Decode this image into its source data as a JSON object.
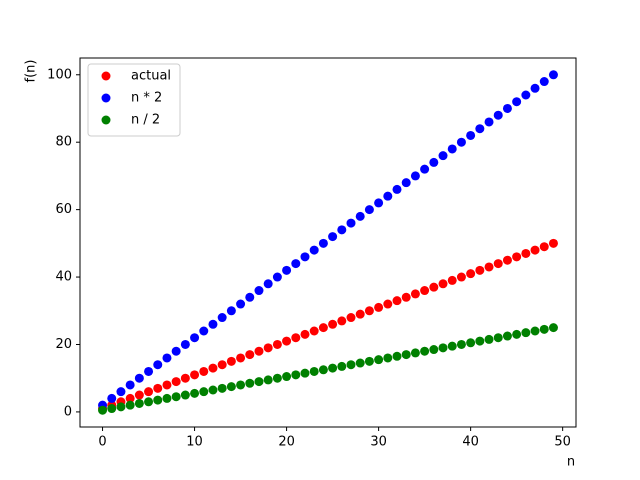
{
  "chart_data": {
    "type": "scatter",
    "xlabel": "n",
    "ylabel": "f(n)",
    "x": [
      0,
      1,
      2,
      3,
      4,
      5,
      6,
      7,
      8,
      9,
      10,
      11,
      12,
      13,
      14,
      15,
      16,
      17,
      18,
      19,
      20,
      21,
      22,
      23,
      24,
      25,
      26,
      27,
      28,
      29,
      30,
      31,
      32,
      33,
      34,
      35,
      36,
      37,
      38,
      39,
      40,
      41,
      42,
      43,
      44,
      45,
      46,
      47,
      48,
      49
    ],
    "series": [
      {
        "name": "actual",
        "color": "#ff0000",
        "values": [
          1,
          2,
          3,
          4,
          5,
          6,
          7,
          8,
          9,
          10,
          11,
          12,
          13,
          14,
          15,
          16,
          17,
          18,
          19,
          20,
          21,
          22,
          23,
          24,
          25,
          26,
          27,
          28,
          29,
          30,
          31,
          32,
          33,
          34,
          35,
          36,
          37,
          38,
          39,
          40,
          41,
          42,
          43,
          44,
          45,
          46,
          47,
          48,
          49,
          50
        ]
      },
      {
        "name": "n * 2",
        "color": "#0000ff",
        "values": [
          2,
          4,
          6,
          8,
          10,
          12,
          14,
          16,
          18,
          20,
          22,
          24,
          26,
          28,
          30,
          32,
          34,
          36,
          38,
          40,
          42,
          44,
          46,
          48,
          50,
          52,
          54,
          56,
          58,
          60,
          62,
          64,
          66,
          68,
          70,
          72,
          74,
          76,
          78,
          80,
          82,
          84,
          86,
          88,
          90,
          92,
          94,
          96,
          98,
          100
        ]
      },
      {
        "name": "n / 2",
        "color": "#008000",
        "values": [
          0.5,
          1,
          1.5,
          2,
          2.5,
          3,
          3.5,
          4,
          4.5,
          5,
          5.5,
          6,
          6.5,
          7,
          7.5,
          8,
          8.5,
          9,
          9.5,
          10,
          10.5,
          11,
          11.5,
          12,
          12.5,
          13,
          13.5,
          14,
          14.5,
          15,
          15.5,
          16,
          16.5,
          17,
          17.5,
          18,
          18.5,
          19,
          19.5,
          20,
          20.5,
          21,
          21.5,
          22,
          22.5,
          23,
          23.5,
          24,
          24.5,
          25
        ]
      }
    ],
    "xlim": [
      -2.45,
      51.45
    ],
    "ylim": [
      -4.475,
      104.975
    ],
    "xticks": [
      0,
      10,
      20,
      30,
      40,
      50
    ],
    "yticks": [
      0,
      20,
      40,
      60,
      80,
      100
    ],
    "legend": "upper left"
  }
}
